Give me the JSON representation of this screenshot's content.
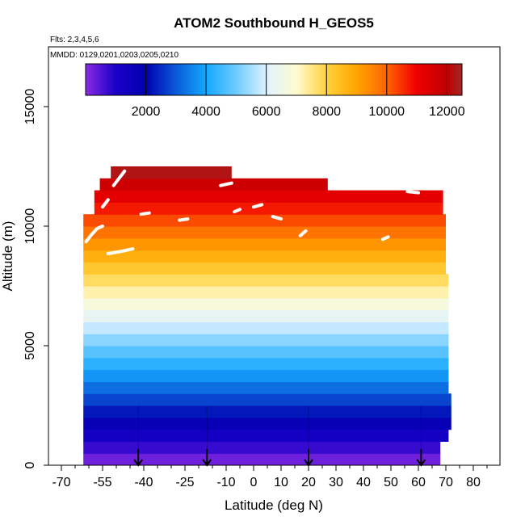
{
  "chart_data": {
    "type": "heatmap",
    "title": "ATOM2 Southbound H_GEOS5",
    "flights_note": "Flts: 2,3,4,5,6",
    "dates_note": "MMDD: 0129,0201,0203,0205,0210",
    "xlabel": "Latitude (deg N)",
    "ylabel": "Altitude (m)",
    "xlim": [
      -70,
      85
    ],
    "ylim": [
      0,
      17500
    ],
    "x_ticks": [
      -70,
      -55,
      -40,
      -25,
      -10,
      0,
      10,
      20,
      30,
      40,
      50,
      60,
      70,
      80
    ],
    "x_minor_ticks": [
      -65,
      -60,
      -50,
      -45,
      -35,
      -30,
      -20,
      -15,
      -5,
      5,
      15,
      25,
      35,
      45,
      55,
      65,
      75,
      85
    ],
    "x_tick_labels": [
      "-70",
      "-55",
      "-40",
      "-25",
      "-10",
      "0",
      "10",
      "20",
      "30",
      "40",
      "50",
      "60",
      "70",
      "80"
    ],
    "y_ticks": [
      0,
      5000,
      10000,
      15000
    ],
    "y_tick_labels": [
      "0",
      "5000",
      "10000",
      "15000"
    ],
    "colorbar": {
      "range": [
        0,
        12500
      ],
      "ticks": [
        2000,
        4000,
        6000,
        8000,
        10000,
        12000
      ],
      "tick_labels": [
        "2000",
        "4000",
        "6000",
        "8000",
        "10000",
        "12000"
      ],
      "color_stops": [
        {
          "v": 0,
          "c": "#8a2be2"
        },
        {
          "v": 1000,
          "c": "#1a00c8"
        },
        {
          "v": 2000,
          "c": "#0000b0"
        },
        {
          "v": 3000,
          "c": "#0a5ad8"
        },
        {
          "v": 4000,
          "c": "#14a8ff"
        },
        {
          "v": 5000,
          "c": "#6ecbff"
        },
        {
          "v": 6000,
          "c": "#dff2ff"
        },
        {
          "v": 7000,
          "c": "#fffbd0"
        },
        {
          "v": 8000,
          "c": "#ffd23c"
        },
        {
          "v": 9000,
          "c": "#ffa500"
        },
        {
          "v": 10000,
          "c": "#ff6400"
        },
        {
          "v": 11000,
          "c": "#f00000"
        },
        {
          "v": 12000,
          "c": "#c00000"
        },
        {
          "v": 12500,
          "c": "#a02828"
        }
      ]
    },
    "layers": [
      {
        "alt": 250,
        "x_min": -62,
        "x_max": 68
      },
      {
        "alt": 750,
        "x_min": -62,
        "x_max": 68
      },
      {
        "alt": 1250,
        "x_min": -62,
        "x_max": 71
      },
      {
        "alt": 1750,
        "x_min": -62,
        "x_max": 72
      },
      {
        "alt": 2250,
        "x_min": -62,
        "x_max": 72
      },
      {
        "alt": 2750,
        "x_min": -62,
        "x_max": 72
      },
      {
        "alt": 3250,
        "x_min": -62,
        "x_max": 71
      },
      {
        "alt": 3750,
        "x_min": -62,
        "x_max": 71
      },
      {
        "alt": 4250,
        "x_min": -62,
        "x_max": 71
      },
      {
        "alt": 4750,
        "x_min": -62,
        "x_max": 71
      },
      {
        "alt": 5250,
        "x_min": -62,
        "x_max": 71
      },
      {
        "alt": 5750,
        "x_min": -62,
        "x_max": 71
      },
      {
        "alt": 6250,
        "x_min": -62,
        "x_max": 71
      },
      {
        "alt": 6750,
        "x_min": -62,
        "x_max": 71
      },
      {
        "alt": 7250,
        "x_min": -62,
        "x_max": 71
      },
      {
        "alt": 7750,
        "x_min": -62,
        "x_max": 71
      },
      {
        "alt": 8250,
        "x_min": -62,
        "x_max": 70
      },
      {
        "alt": 8750,
        "x_min": -62,
        "x_max": 70
      },
      {
        "alt": 9250,
        "x_min": -62,
        "x_max": 70
      },
      {
        "alt": 9750,
        "x_min": -62,
        "x_max": 70
      },
      {
        "alt": 10250,
        "x_min": -62,
        "x_max": 70
      },
      {
        "alt": 10750,
        "x_min": -58,
        "x_max": 69
      },
      {
        "alt": 11250,
        "x_min": -58,
        "x_max": 69
      },
      {
        "alt": 11750,
        "x_min": -56,
        "x_max": 27
      },
      {
        "alt": 12250,
        "x_min": -52,
        "x_max": -8
      }
    ],
    "flight_track_segments": [
      [
        [
          -61,
          9350
        ],
        [
          -59,
          9650
        ],
        [
          -57,
          9900
        ],
        [
          -55,
          10000
        ]
      ],
      [
        [
          -53,
          8850
        ],
        [
          -48,
          8950
        ],
        [
          -44,
          9050
        ]
      ],
      [
        [
          -55,
          10800
        ],
        [
          -53,
          11100
        ]
      ],
      [
        [
          -51,
          11700
        ],
        [
          -49,
          12000
        ],
        [
          -47,
          12300
        ]
      ],
      [
        [
          -41,
          10500
        ],
        [
          -38,
          10550
        ]
      ],
      [
        [
          -27,
          10250
        ],
        [
          -24,
          10300
        ]
      ],
      [
        [
          -12,
          11700
        ],
        [
          -8,
          11800
        ]
      ],
      [
        [
          -7,
          10600
        ],
        [
          -5,
          10700
        ]
      ],
      [
        [
          0,
          10800
        ],
        [
          3,
          10900
        ]
      ],
      [
        [
          7,
          10400
        ],
        [
          10,
          10300
        ]
      ],
      [
        [
          17,
          9600
        ],
        [
          19,
          9800
        ]
      ],
      [
        [
          56,
          11450
        ],
        [
          60,
          11400
        ]
      ],
      [
        [
          47,
          9450
        ],
        [
          49,
          9550
        ]
      ]
    ],
    "vertical_profiles_lat": [
      -42,
      -17,
      20,
      61
    ],
    "arrow_lat": [
      -42,
      -17,
      20,
      61
    ]
  }
}
